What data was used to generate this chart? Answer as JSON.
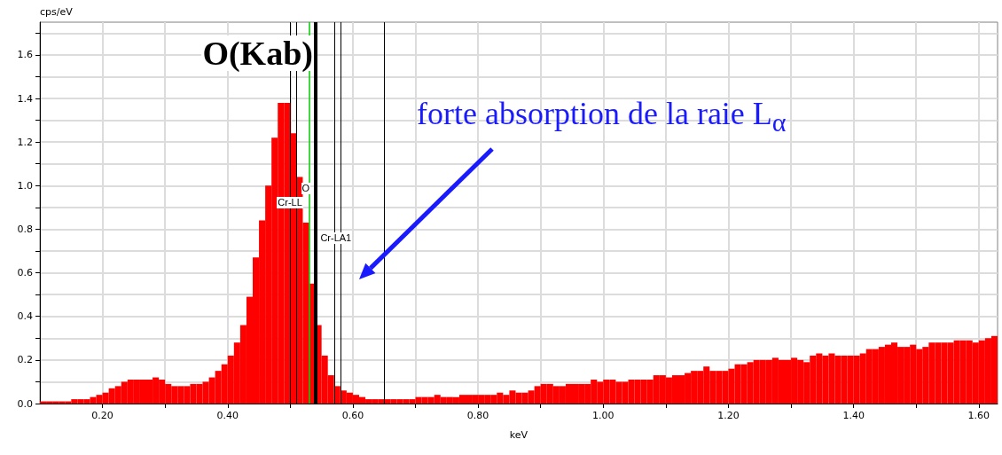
{
  "chart_data": {
    "type": "histogram",
    "xlabel": "keV",
    "ylabel": "cps/eV",
    "color": "#ff0000",
    "bins": [
      0.1,
      0.11,
      0.12,
      0.13,
      0.14,
      0.15,
      0.16,
      0.17,
      0.18,
      0.19,
      0.2,
      0.21,
      0.22,
      0.23,
      0.24,
      0.25,
      0.26,
      0.27,
      0.28,
      0.29,
      0.3,
      0.31,
      0.32,
      0.33,
      0.34,
      0.35,
      0.36,
      0.37,
      0.38,
      0.39,
      0.4,
      0.41,
      0.42,
      0.43,
      0.44,
      0.45,
      0.46,
      0.47,
      0.48,
      0.49,
      0.5,
      0.51,
      0.52,
      0.53,
      0.54,
      0.55,
      0.56,
      0.57,
      0.58,
      0.59,
      0.6,
      0.61,
      0.62,
      0.63,
      0.64,
      0.65,
      0.66,
      0.67,
      0.68,
      0.69,
      0.7,
      0.71,
      0.72,
      0.73,
      0.74,
      0.75,
      0.76,
      0.77,
      0.78,
      0.79,
      0.8,
      0.81,
      0.82,
      0.83,
      0.84,
      0.85,
      0.86,
      0.87,
      0.88,
      0.89,
      0.9,
      0.91,
      0.92,
      0.93,
      0.94,
      0.95,
      0.96,
      0.97,
      0.98,
      0.99,
      1.0,
      1.01,
      1.02,
      1.03,
      1.04,
      1.05,
      1.06,
      1.07,
      1.08,
      1.09,
      1.1,
      1.11,
      1.12,
      1.13,
      1.14,
      1.15,
      1.16,
      1.17,
      1.18,
      1.19,
      1.2,
      1.21,
      1.22,
      1.23,
      1.24,
      1.25,
      1.26,
      1.27,
      1.28,
      1.29,
      1.3,
      1.31,
      1.32,
      1.33,
      1.34,
      1.35,
      1.36,
      1.37,
      1.38,
      1.39,
      1.4,
      1.41,
      1.42,
      1.43,
      1.44,
      1.45,
      1.46,
      1.47,
      1.48,
      1.49,
      1.5,
      1.51,
      1.52,
      1.53,
      1.54,
      1.55,
      1.56,
      1.57,
      1.58,
      1.59,
      1.6,
      1.61,
      1.62,
      1.63
    ],
    "values": [
      0.01,
      0.01,
      0.01,
      0.01,
      0.01,
      0.02,
      0.02,
      0.02,
      0.03,
      0.04,
      0.05,
      0.07,
      0.08,
      0.1,
      0.11,
      0.11,
      0.11,
      0.11,
      0.12,
      0.11,
      0.09,
      0.08,
      0.08,
      0.08,
      0.09,
      0.09,
      0.1,
      0.12,
      0.15,
      0.18,
      0.22,
      0.28,
      0.36,
      0.49,
      0.67,
      0.84,
      1.0,
      1.22,
      1.38,
      1.38,
      1.24,
      1.04,
      0.83,
      0.55,
      0.36,
      0.22,
      0.13,
      0.08,
      0.06,
      0.05,
      0.04,
      0.03,
      0.02,
      0.02,
      0.02,
      0.02,
      0.02,
      0.02,
      0.02,
      0.02,
      0.03,
      0.03,
      0.03,
      0.04,
      0.03,
      0.03,
      0.03,
      0.04,
      0.04,
      0.04,
      0.04,
      0.04,
      0.04,
      0.05,
      0.04,
      0.06,
      0.05,
      0.05,
      0.06,
      0.08,
      0.09,
      0.09,
      0.08,
      0.08,
      0.09,
      0.09,
      0.09,
      0.09,
      0.11,
      0.1,
      0.11,
      0.11,
      0.1,
      0.1,
      0.11,
      0.11,
      0.11,
      0.11,
      0.13,
      0.13,
      0.12,
      0.13,
      0.13,
      0.14,
      0.15,
      0.15,
      0.17,
      0.15,
      0.15,
      0.15,
      0.16,
      0.18,
      0.18,
      0.19,
      0.2,
      0.2,
      0.2,
      0.21,
      0.2,
      0.2,
      0.21,
      0.2,
      0.19,
      0.22,
      0.23,
      0.22,
      0.23,
      0.22,
      0.22,
      0.22,
      0.22,
      0.23,
      0.25,
      0.25,
      0.26,
      0.27,
      0.28,
      0.26,
      0.26,
      0.27,
      0.25,
      0.26,
      0.28,
      0.28,
      0.28,
      0.28,
      0.29,
      0.29,
      0.29,
      0.28,
      0.29,
      0.3,
      0.31
    ],
    "xlim": [
      0.1,
      1.63
    ],
    "ylim": [
      0,
      1.75
    ],
    "xticks": [
      {
        "value": 0.2,
        "label": "0.20"
      },
      {
        "value": 0.3,
        "label": null
      },
      {
        "value": 0.4,
        "label": "0.40"
      },
      {
        "value": 0.5,
        "label": null
      },
      {
        "value": 0.6,
        "label": "0.60"
      },
      {
        "value": 0.7,
        "label": null
      },
      {
        "value": 0.8,
        "label": "0.80"
      },
      {
        "value": 0.9,
        "label": null
      },
      {
        "value": 1.0,
        "label": "1.00"
      },
      {
        "value": 1.1,
        "label": null
      },
      {
        "value": 1.2,
        "label": "1.20"
      },
      {
        "value": 1.3,
        "label": null
      },
      {
        "value": 1.4,
        "label": "1.40"
      },
      {
        "value": 1.5,
        "label": null
      },
      {
        "value": 1.6,
        "label": "1.60"
      }
    ],
    "yticks": [
      {
        "value": 0,
        "label": "0.0"
      },
      {
        "value": 0.1,
        "label": null
      },
      {
        "value": 0.2,
        "label": "0.2"
      },
      {
        "value": 0.3,
        "label": null
      },
      {
        "value": 0.4,
        "label": "0.4"
      },
      {
        "value": 0.5,
        "label": null
      },
      {
        "value": 0.6,
        "label": "0.6"
      },
      {
        "value": 0.7,
        "label": null
      },
      {
        "value": 0.8,
        "label": "0.8"
      },
      {
        "value": 0.9,
        "label": null
      },
      {
        "value": 1.0,
        "label": "1.0"
      },
      {
        "value": 1.1,
        "label": null
      },
      {
        "value": 1.2,
        "label": "1.2"
      },
      {
        "value": 1.3,
        "label": null
      },
      {
        "value": 1.4,
        "label": "1.4"
      },
      {
        "value": 1.5,
        "label": null
      },
      {
        "value": 1.6,
        "label": "1.6"
      },
      {
        "value": 1.7,
        "label": null
      }
    ],
    "grid": true,
    "ref_lines": [
      {
        "axis": "x",
        "value": 0.5,
        "label": "Cr-LL",
        "color": "#000000"
      },
      {
        "axis": "x",
        "value": 0.51,
        "label": null,
        "color": "#000000"
      },
      {
        "axis": "x",
        "value": 0.525,
        "label": "O",
        "color": "#00cc00"
      },
      {
        "axis": "x",
        "value": 0.544,
        "label": "O(Kab)",
        "color": "#000000"
      },
      {
        "axis": "x",
        "value": 0.573,
        "label": "Cr-LA1",
        "color": "#000000"
      },
      {
        "axis": "x",
        "value": 0.583,
        "label": null,
        "color": "#000000"
      },
      {
        "axis": "x",
        "value": 0.654,
        "label": null,
        "color": "#000000"
      }
    ],
    "annotations": [
      "forte absorption de la raie L$_{α}$"
    ]
  }
}
